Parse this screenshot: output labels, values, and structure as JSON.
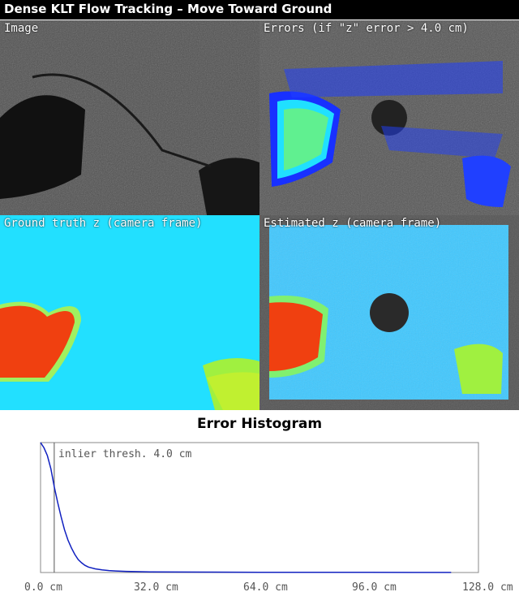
{
  "window": {
    "title": "Dense KLT Flow Tracking – Move Toward Ground"
  },
  "panels": {
    "image": {
      "label": "Image"
    },
    "errors": {
      "label": "Errors (if \"z\" error > 4.0 cm)"
    },
    "ground_truth": {
      "label": "Ground truth z (camera frame)"
    },
    "estimated": {
      "label": "Estimated z (camera frame)"
    }
  },
  "colors": {
    "rock_gray": "#4a4a4a",
    "depth_cyan": "#22e0ff",
    "depth_red": "#f04010",
    "depth_green": "#a0f040",
    "error_blue": "#2030ff",
    "hist_line": "#1020c0"
  },
  "chart_data": {
    "type": "line",
    "title": "Error Histogram",
    "xlabel": "",
    "ylabel": "",
    "xlim": [
      0,
      128
    ],
    "x_unit": "cm",
    "xticks": [
      "0.0 cm",
      "32.0 cm",
      "64.0 cm",
      "96.0 cm",
      "128.0 cm"
    ],
    "annotation": "inlier thresh. 4.0 cm",
    "threshold": 4.0,
    "grid": false,
    "series": [
      {
        "x": [
          0,
          1,
          2,
          3,
          4,
          5,
          6,
          7,
          8,
          9,
          10,
          11,
          12,
          13,
          14,
          16,
          18,
          20,
          22,
          25,
          28,
          32,
          40,
          50,
          64,
          80,
          96,
          110,
          120
        ],
        "y": [
          1.0,
          0.96,
          0.9,
          0.8,
          0.66,
          0.54,
          0.43,
          0.33,
          0.25,
          0.19,
          0.14,
          0.1,
          0.075,
          0.055,
          0.042,
          0.028,
          0.02,
          0.015,
          0.012,
          0.009,
          0.007,
          0.005,
          0.004,
          0.003,
          0.002,
          0.0015,
          0.001,
          0.0008,
          0.0005
        ]
      }
    ]
  }
}
